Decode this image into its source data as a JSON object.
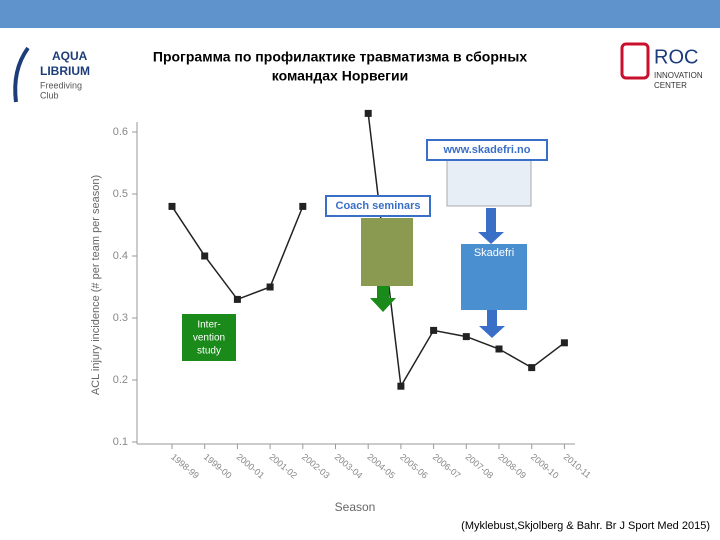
{
  "slide": {
    "title_lines": [
      "Программа по профилактике травматизма в сборных",
      "командах Норвегии"
    ],
    "left_logo": [
      "AQUA",
      "LIBRIUM",
      "Freediving",
      "Club"
    ],
    "right_logo": [
      "ROC",
      "INNOVATION",
      "CENTER"
    ],
    "citation": "(Myklebust,Skjolberg & Bahr. Br J Sport Med 2015)"
  },
  "chart_data": {
    "type": "line",
    "categories": [
      "1998-99",
      "1999-00",
      "2000-01",
      "2001-02",
      "2002-03",
      "2003-04",
      "2004-05",
      "2005-06",
      "2006-07",
      "2007-08",
      "2008-09",
      "2009-10",
      "2010-11"
    ],
    "values": [
      0.48,
      0.4,
      0.33,
      0.35,
      0.48,
      null,
      0.63,
      0.19,
      0.28,
      0.27,
      0.25,
      0.22,
      0.26
    ],
    "color": "#222222",
    "ylim": [
      0.1,
      0.6
    ],
    "yticks": [
      0.1,
      0.2,
      0.3,
      0.4,
      0.5,
      0.6
    ],
    "x_label": "Season",
    "y_label": "ACL injury incidence (# per team per season)",
    "annotations": {
      "intervention": [
        "Inter-",
        "vention",
        "study"
      ],
      "seminars": "Coach seminars",
      "website": "www.skadefri.no",
      "cover": "Skadefri"
    }
  }
}
